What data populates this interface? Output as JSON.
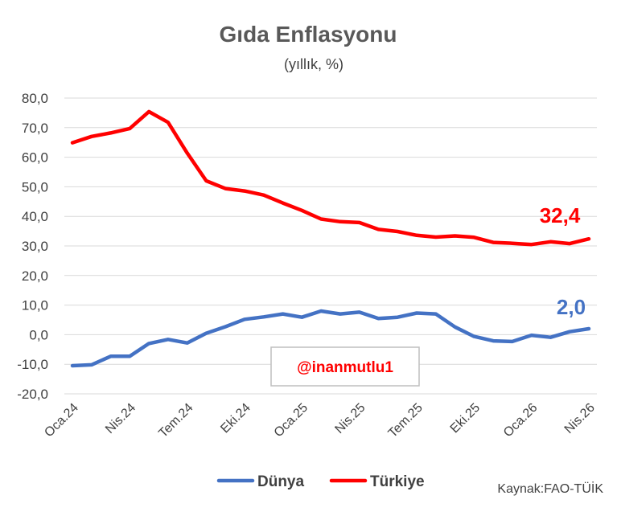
{
  "chart_data": {
    "type": "line",
    "title": "Gıda Enflasyonu",
    "subtitle": "(yıllık, %)",
    "ylim": [
      -20,
      80
    ],
    "yticks": [
      "-20,0",
      "-10,0",
      "0,0",
      "10,0",
      "20,0",
      "30,0",
      "40,0",
      "50,0",
      "60,0",
      "70,0",
      "80,0"
    ],
    "grid": true,
    "x_tick_labels": [
      "Oca.24",
      "Nis.24",
      "Tem.24",
      "Eki.24",
      "Oca.25",
      "Nis.25",
      "Tem.25",
      "Eki.25",
      "Oca.26",
      "Nis.26"
    ],
    "x_tick_positions": [
      0,
      3,
      6,
      9,
      12,
      15,
      18,
      21,
      24,
      27
    ],
    "legend_position": "bottom",
    "series": [
      {
        "name": "Dünya",
        "color": "#4472c4",
        "values": [
          -10.5,
          -10.2,
          -7.3,
          -7.3,
          -3.0,
          -1.6,
          -2.8,
          0.5,
          2.7,
          5.2,
          6.0,
          7.0,
          5.9,
          8.0,
          7.0,
          7.6,
          5.5,
          5.9,
          7.3,
          7.0,
          2.6,
          -0.6,
          -2.1,
          -2.3,
          -0.2,
          -0.9,
          1.0,
          2.0
        ],
        "end_label": "2,0"
      },
      {
        "name": "Türkiye",
        "color": "#ff0000",
        "values": [
          64.9,
          67.0,
          68.2,
          69.7,
          75.4,
          71.8,
          61.4,
          52.0,
          49.4,
          48.6,
          47.2,
          44.5,
          42.0,
          39.1,
          38.2,
          37.9,
          35.6,
          34.9,
          33.6,
          33.0,
          33.4,
          32.9,
          31.2,
          30.9,
          30.5,
          31.4,
          30.8,
          32.4
        ],
        "end_label": "32,4"
      }
    ]
  },
  "watermark": "@inanmutlu1",
  "source": "Kaynak:FAO-TÜİK"
}
